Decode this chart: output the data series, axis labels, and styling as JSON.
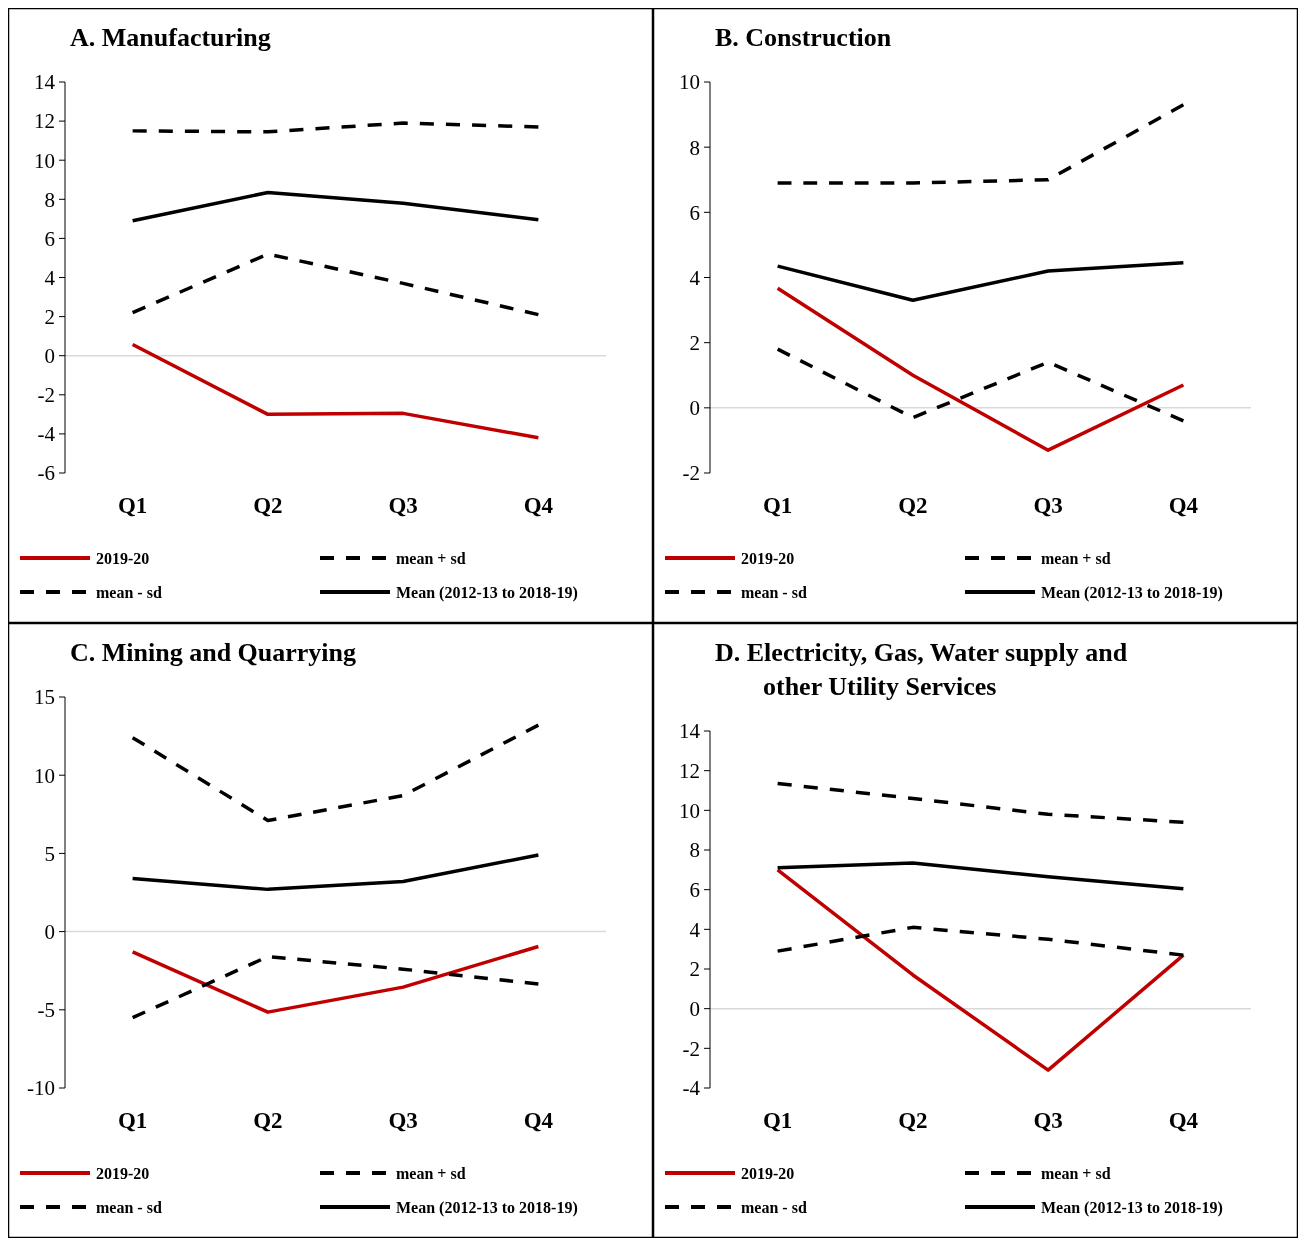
{
  "chart_data": [
    {
      "type": "line",
      "title": "A.  Manufacturing",
      "categories": [
        "Q1",
        "Q2",
        "Q3",
        "Q4"
      ],
      "ylim": [
        -6,
        14
      ],
      "yticks": [
        -6,
        -4,
        -2,
        0,
        2,
        4,
        6,
        8,
        10,
        12,
        14
      ],
      "legend": "bottom",
      "grid": false,
      "ref_lines": [
        {
          "axis": "y",
          "value": 0,
          "color": "#d9d9d9"
        }
      ],
      "series": [
        {
          "name": "2019-20",
          "color": "#c00000",
          "line_style": "solid",
          "values": [
            0.57,
            -3.0,
            -2.95,
            -4.2
          ]
        },
        {
          "name": "mean + sd",
          "color": "#000000",
          "line_style": "dashed",
          "values": [
            11.5,
            11.45,
            11.9,
            11.7
          ]
        },
        {
          "name": "mean - sd",
          "color": "#000000",
          "line_style": "dashed",
          "values": [
            2.2,
            5.2,
            3.7,
            2.1
          ]
        },
        {
          "name": "Mean (2012-13 to 2018-19)",
          "color": "#000000",
          "line_style": "solid",
          "values": [
            6.9,
            8.35,
            7.8,
            6.95
          ]
        }
      ]
    },
    {
      "type": "line",
      "title": "B.  Construction",
      "categories": [
        "Q1",
        "Q2",
        "Q3",
        "Q4"
      ],
      "ylim": [
        -2,
        10
      ],
      "yticks": [
        -2,
        0,
        2,
        4,
        6,
        8,
        10
      ],
      "legend": "bottom",
      "grid": false,
      "ref_lines": [
        {
          "axis": "y",
          "value": 0,
          "color": "#d9d9d9"
        }
      ],
      "series": [
        {
          "name": "2019-20",
          "color": "#c00000",
          "line_style": "solid",
          "values": [
            3.67,
            1.0,
            -1.3,
            0.7
          ]
        },
        {
          "name": "mean + sd",
          "color": "#000000",
          "line_style": "dashed",
          "values": [
            6.9,
            6.9,
            7.0,
            9.3
          ]
        },
        {
          "name": "mean - sd",
          "color": "#000000",
          "line_style": "dashed",
          "values": [
            1.8,
            -0.3,
            1.4,
            -0.4
          ]
        },
        {
          "name": "Mean (2012-13 to 2018-19)",
          "color": "#000000",
          "line_style": "solid",
          "values": [
            4.35,
            3.3,
            4.2,
            4.45
          ]
        }
      ]
    },
    {
      "type": "line",
      "title": "C.  Mining and Quarrying",
      "categories": [
        "Q1",
        "Q2",
        "Q3",
        "Q4"
      ],
      "ylim": [
        -10,
        15
      ],
      "yticks": [
        -10,
        -5,
        0,
        5,
        10,
        15
      ],
      "legend": "bottom",
      "grid": false,
      "ref_lines": [
        {
          "axis": "y",
          "value": 0,
          "color": "#d9d9d9"
        }
      ],
      "series": [
        {
          "name": "2019-20",
          "color": "#c00000",
          "line_style": "solid",
          "values": [
            -1.3,
            -5.15,
            -3.55,
            -0.95
          ]
        },
        {
          "name": "mean + sd",
          "color": "#000000",
          "line_style": "dashed",
          "values": [
            12.4,
            7.1,
            8.7,
            13.2
          ]
        },
        {
          "name": "mean - sd",
          "color": "#000000",
          "line_style": "dashed",
          "values": [
            -5.5,
            -1.6,
            -2.4,
            -3.35
          ]
        },
        {
          "name": "Mean (2012-13 to 2018-19)",
          "color": "#000000",
          "line_style": "solid",
          "values": [
            3.4,
            2.7,
            3.2,
            4.9
          ]
        }
      ]
    },
    {
      "type": "line",
      "title": "D.  Electricity, Gas, Water supply and other Utility Services",
      "categories": [
        "Q1",
        "Q2",
        "Q3",
        "Q4"
      ],
      "ylim": [
        -4,
        14
      ],
      "yticks": [
        -4,
        -2,
        0,
        2,
        4,
        6,
        8,
        10,
        12,
        14
      ],
      "legend": "bottom",
      "grid": false,
      "ref_lines": [
        {
          "axis": "y",
          "value": 0,
          "color": "#d9d9d9"
        }
      ],
      "series": [
        {
          "name": "2019-20",
          "color": "#c00000",
          "line_style": "solid",
          "values": [
            7.0,
            1.7,
            -3.1,
            2.7
          ]
        },
        {
          "name": "mean + sd",
          "color": "#000000",
          "line_style": "dashed",
          "values": [
            11.35,
            10.6,
            9.8,
            9.4
          ]
        },
        {
          "name": "mean - sd",
          "color": "#000000",
          "line_style": "dashed",
          "values": [
            2.9,
            4.1,
            3.5,
            2.7
          ]
        },
        {
          "name": "Mean (2012-13 to 2018-19)",
          "color": "#000000",
          "line_style": "solid",
          "values": [
            7.1,
            7.35,
            6.65,
            6.05
          ]
        }
      ]
    }
  ]
}
